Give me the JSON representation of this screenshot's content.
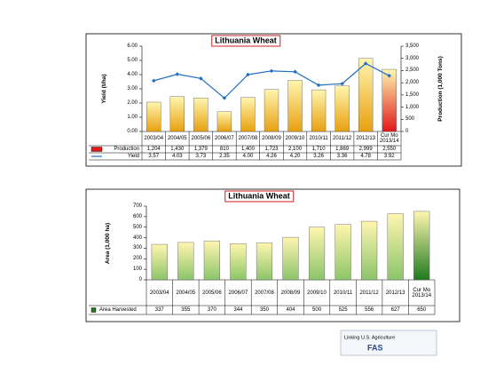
{
  "chart_data": [
    {
      "type": "bar",
      "title": "Lithuania Wheat",
      "categories": [
        "2003/04",
        "2004/05",
        "2005/06",
        "2006/07",
        "2007/08",
        "2008/09",
        "2009/10",
        "2010/11",
        "2011/12",
        "2012/13",
        "Cur Mo 2013/14"
      ],
      "y_label": "Yield (t/ha)",
      "y2_label": "Production (1,000 Tons)",
      "ylim": [
        0,
        6
      ],
      "yticks": [
        {
          "value": 0,
          "label": "0.00"
        },
        {
          "value": 1,
          "label": "1.00"
        },
        {
          "value": 2,
          "label": "2.00"
        },
        {
          "value": 3,
          "label": "3.00"
        },
        {
          "value": 4,
          "label": "4.00"
        },
        {
          "value": 5,
          "label": "5.00"
        },
        {
          "value": 6,
          "label": "6.00"
        }
      ],
      "y2lim": [
        0,
        3500
      ],
      "y2ticks": [
        0,
        500,
        {
          "value": 1000,
          "label": "1,000"
        },
        {
          "value": 1500,
          "label": "1,500"
        },
        {
          "value": 2000,
          "label": "2,000"
        },
        {
          "value": 2500,
          "label": "2,500"
        },
        {
          "value": 3000,
          "label": "3,000"
        },
        {
          "value": 3500,
          "label": "3,500"
        }
      ],
      "grid": false,
      "series": [
        {
          "name": "Production",
          "type": "bar",
          "axis": "y2",
          "color": "#e8a010",
          "colors": [
            "#e8a010",
            "#e8a010",
            "#e8a010",
            "#e8a010",
            "#e8a010",
            "#e8a010",
            "#e8a010",
            "#e8a010",
            "#e8a010",
            "#e8a010",
            "#e01818"
          ],
          "values": [
            1204,
            1430,
            1379,
            810,
            1400,
            1723,
            2100,
            1710,
            1869,
            2999,
            2550
          ],
          "value_labels": [
            "1,204",
            "1,430",
            "1,379",
            "810",
            "1,400",
            "1,723",
            "2,100",
            "1,710",
            "1,869",
            "2,999",
            "2,550"
          ]
        },
        {
          "name": "Yield",
          "type": "line",
          "color": "#1f6fc0",
          "values": [
            3.57,
            4.03,
            3.73,
            2.35,
            4.0,
            4.26,
            4.2,
            3.26,
            3.36,
            4.78,
            3.92
          ],
          "value_labels": [
            "3.57",
            "4.03",
            "3.73",
            "2.35",
            "4.00",
            "4.26",
            "4.20",
            "3.26",
            "3.36",
            "4.78",
            "3.92"
          ]
        }
      ]
    },
    {
      "type": "bar",
      "title": "Lithuania Wheat",
      "categories": [
        "2003/04",
        "2004/05",
        "2005/06",
        "2006/07",
        "2007/08",
        "2008/09",
        "2009/10",
        "2010/11",
        "2011/12",
        "2012/13",
        "Cur Mo 2013/14"
      ],
      "y_label": "Area (1,000 ha)",
      "ylim": [
        0,
        700
      ],
      "yticks": [
        0,
        100,
        200,
        300,
        400,
        500,
        600,
        700
      ],
      "grid": false,
      "series": [
        {
          "name": "Area Harvested",
          "type": "bar",
          "color": "#8cc46a",
          "colors": [
            "#8cc46a",
            "#8cc46a",
            "#8cc46a",
            "#8cc46a",
            "#8cc46a",
            "#8cc46a",
            "#8cc46a",
            "#8cc46a",
            "#8cc46a",
            "#8cc46a",
            "#1e7a1e"
          ],
          "values": [
            337,
            355,
            370,
            344,
            350,
            404,
            500,
            525,
            556,
            627,
            650
          ],
          "value_labels": [
            "337",
            "355",
            "370",
            "344",
            "350",
            "404",
            "500",
            "525",
            "556",
            "627",
            "650"
          ]
        }
      ]
    }
  ],
  "footer": {
    "text": "Linking U.S. Agriculture",
    "logo": "FAS"
  }
}
